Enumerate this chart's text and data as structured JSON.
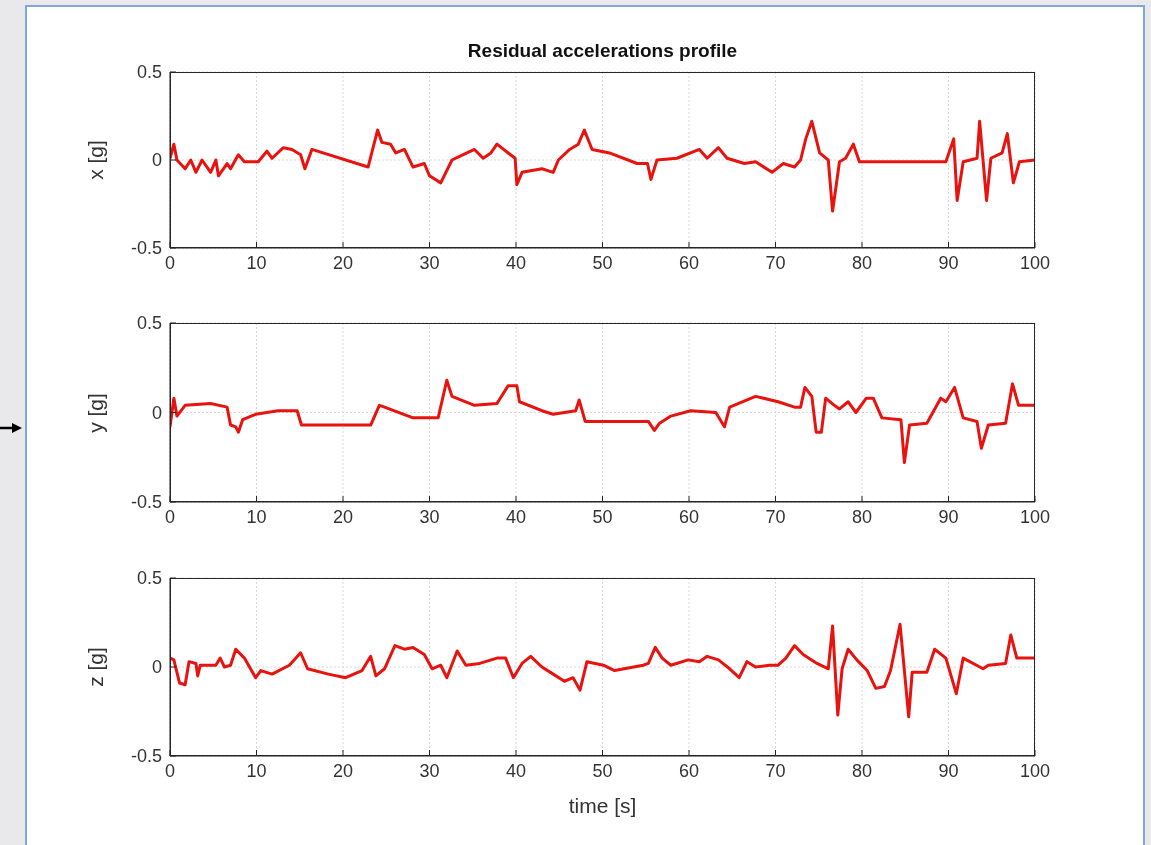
{
  "chart_data": [
    {
      "type": "line",
      "title": "Residual accelerations profile",
      "ylabel": "x [g]",
      "xlim": [
        0,
        100
      ],
      "ylim": [
        -0.5,
        0.5
      ],
      "xticks": [
        0,
        10,
        20,
        30,
        40,
        50,
        60,
        70,
        80,
        90,
        100
      ],
      "yticks": [
        -0.5,
        0,
        0.5
      ],
      "grid": true,
      "marker": "none",
      "x": [
        0,
        0.45,
        0.8,
        1.75,
        2.4,
        3.0,
        3.7,
        4.7,
        5.3,
        5.6,
        6.6,
        7,
        7.9,
        8.6,
        10.2,
        11.2,
        11.8,
        13.1,
        14.1,
        15.1,
        15.6,
        16.4,
        22.9,
        24,
        24.5,
        25.5,
        26.1,
        27.1,
        28.1,
        29.4,
        30,
        31.3,
        32.6,
        33.9,
        35.2,
        36.2,
        37.1,
        37.8,
        39.1,
        39.9,
        40.1,
        40.7,
        43,
        44.3,
        44.9,
        46.2,
        47.2,
        47.9,
        48.8,
        50.8,
        54,
        55.2,
        55.6,
        56.3,
        58.6,
        61.2,
        62.1,
        63.4,
        64.4,
        66.4,
        67.7,
        69.6,
        70.9,
        72.2,
        72.9,
        73.5,
        74.2,
        75.1,
        76.1,
        76.6,
        77.4,
        78.1,
        79,
        79.7,
        89.7,
        90.6,
        91,
        91.7,
        93.3,
        93.6,
        94.4,
        94.9,
        96.2,
        96.8,
        97.5,
        98.2,
        100
      ],
      "series": [
        {
          "color": "#e8120e",
          "values": [
            0.01,
            0.09,
            0,
            -0.05,
            0,
            -0.07,
            0,
            -0.07,
            0,
            -0.09,
            -0.02,
            -0.05,
            0.03,
            -0.01,
            -0.01,
            0.05,
            0.01,
            0.07,
            0.06,
            0.03,
            -0.05,
            0.06,
            -0.04,
            0.17,
            0.1,
            0.09,
            0.04,
            0.06,
            -0.04,
            -0.02,
            -0.09,
            -0.13,
            0,
            0.03,
            0.06,
            0.01,
            0.04,
            0.09,
            0.04,
            0.01,
            -0.14,
            -0.07,
            -0.05,
            -0.07,
            0,
            0.06,
            0.09,
            0.17,
            0.06,
            0.04,
            -0.02,
            -0.02,
            -0.11,
            0,
            0.01,
            0.06,
            0.01,
            0.07,
            0.01,
            -0.02,
            -0.01,
            -0.07,
            -0.02,
            -0.04,
            0,
            0.12,
            0.22,
            0.04,
            0,
            -0.29,
            -0.01,
            0.01,
            0.09,
            -0.01,
            -0.01,
            0.12,
            -0.23,
            -0.01,
            0.01,
            0.22,
            -0.23,
            0.01,
            0.04,
            0.15,
            -0.13,
            -0.01,
            0
          ]
        }
      ]
    },
    {
      "type": "line",
      "ylabel": "y [g]",
      "xlim": [
        0,
        100
      ],
      "ylim": [
        -0.5,
        0.5
      ],
      "xticks": [
        0,
        10,
        20,
        30,
        40,
        50,
        60,
        70,
        80,
        90,
        100
      ],
      "yticks": [
        -0.5,
        0,
        0.5
      ],
      "grid": true,
      "marker": "none",
      "x": [
        0,
        0.45,
        0.8,
        1.75,
        4.7,
        6.6,
        7,
        7.6,
        7.9,
        8.4,
        9.9,
        12.5,
        14.7,
        15.2,
        23.2,
        24.2,
        24.8,
        28.1,
        31,
        32,
        32.6,
        35.2,
        37.8,
        39.1,
        40.1,
        40.4,
        43,
        44.3,
        46.9,
        47.3,
        48,
        55.3,
        56,
        56.6,
        57.9,
        60.2,
        63.1,
        64.1,
        64.7,
        67.7,
        70.3,
        72.2,
        72.9,
        73.4,
        74.2,
        74.7,
        75.3,
        75.8,
        76.8,
        77.4,
        78.4,
        79.3,
        80.5,
        81.3,
        82.3,
        84.5,
        84.9,
        85.5,
        87.5,
        89.1,
        89.7,
        90.7,
        91.7,
        93.3,
        93.8,
        94.6,
        96.6,
        97.4,
        98.1,
        100
      ],
      "series": [
        {
          "color": "#e8120e",
          "values": [
            -0.08,
            0.08,
            -0.02,
            0.04,
            0.05,
            0.03,
            -0.07,
            -0.08,
            -0.11,
            -0.04,
            -0.01,
            0.01,
            0.01,
            -0.07,
            -0.07,
            0.04,
            0.03,
            -0.03,
            -0.03,
            0.18,
            0.09,
            0.04,
            0.05,
            0.15,
            0.15,
            0.06,
            0.01,
            -0.01,
            0.01,
            0.07,
            -0.05,
            -0.05,
            -0.1,
            -0.06,
            -0.02,
            0.01,
            0,
            -0.08,
            0.03,
            0.09,
            0.06,
            0.03,
            0.03,
            0.14,
            0.09,
            -0.11,
            -0.11,
            0.08,
            0.04,
            0.02,
            0.06,
            0,
            0.08,
            0.08,
            -0.03,
            -0.04,
            -0.28,
            -0.07,
            -0.06,
            0.08,
            0.06,
            0.14,
            -0.03,
            -0.05,
            -0.2,
            -0.07,
            -0.06,
            0.16,
            0.04,
            0.04
          ]
        }
      ]
    },
    {
      "type": "line",
      "ylabel": "z [g]",
      "xlabel": "time [s]",
      "xlim": [
        0,
        100
      ],
      "ylim": [
        -0.5,
        0.5
      ],
      "xticks": [
        0,
        10,
        20,
        30,
        40,
        50,
        60,
        70,
        80,
        90,
        100
      ],
      "yticks": [
        -0.5,
        0,
        0.5
      ],
      "grid": true,
      "marker": "none",
      "x": [
        0,
        0.45,
        1.1,
        1.75,
        2.2,
        3,
        3.2,
        3.5,
        5.3,
        5.8,
        6.3,
        7,
        7.6,
        8.6,
        9.9,
        10.5,
        11.8,
        13.8,
        15.1,
        15.9,
        18.3,
        20.3,
        22.2,
        23.2,
        23.8,
        24.8,
        26,
        27.1,
        28.1,
        29.4,
        30.3,
        31.3,
        32,
        33.2,
        34.2,
        35.8,
        37.8,
        38.8,
        39.7,
        40.7,
        41.7,
        43,
        44.3,
        45.6,
        46.6,
        47.4,
        48.2,
        50.1,
        51.4,
        54.7,
        55.3,
        56.1,
        56.9,
        57.9,
        59.9,
        61.2,
        62.1,
        63.4,
        64.7,
        65.8,
        66.7,
        67.7,
        69.3,
        70.3,
        71.2,
        72.2,
        73.2,
        74.8,
        76.1,
        76.6,
        77.2,
        77.7,
        78.4,
        79.4,
        80.6,
        81.6,
        82.6,
        83.3,
        84.4,
        85.4,
        85.8,
        87.5,
        88.4,
        89.7,
        90.9,
        91.7,
        94,
        94.6,
        96.6,
        97.2,
        97.9,
        100
      ],
      "series": [
        {
          "color": "#e8120e",
          "values": [
            0.05,
            0.04,
            -0.09,
            -0.1,
            0.03,
            0.02,
            -0.05,
            0.01,
            0.01,
            0.05,
            0,
            0.01,
            0.1,
            0.05,
            -0.06,
            -0.02,
            -0.04,
            0.01,
            0.08,
            -0.01,
            -0.04,
            -0.06,
            -0.02,
            0.06,
            -0.05,
            -0.01,
            0.12,
            0.1,
            0.11,
            0.07,
            -0.01,
            0.01,
            -0.06,
            0.09,
            0.01,
            0.02,
            0.05,
            0.05,
            -0.06,
            0.02,
            0.06,
            0,
            -0.04,
            -0.08,
            -0.06,
            -0.13,
            0.03,
            0.01,
            -0.02,
            0.01,
            0.02,
            0.11,
            0.05,
            0.01,
            0.04,
            0.03,
            0.06,
            0.04,
            -0.01,
            -0.06,
            0.03,
            0,
            0.01,
            0.01,
            0.05,
            0.12,
            0.07,
            0.02,
            -0.01,
            0.23,
            -0.27,
            -0.01,
            0.1,
            0.04,
            -0.02,
            -0.12,
            -0.11,
            -0.02,
            0.24,
            -0.28,
            -0.03,
            -0.03,
            0.1,
            0.05,
            -0.15,
            0.05,
            -0.01,
            0.01,
            0.02,
            0.18,
            0.05,
            0.05
          ]
        }
      ]
    }
  ]
}
